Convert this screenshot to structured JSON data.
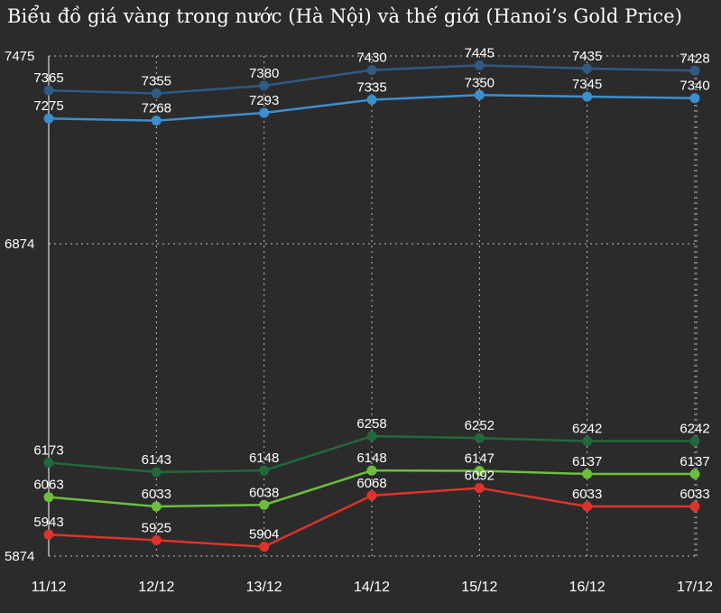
{
  "title": "Biểu đồ giá vàng trong nước (Hà Nội) và thế giới (Hanoi’s Gold Price)",
  "chart_data": {
    "type": "line",
    "title": "Biểu đồ giá vàng trong nước (Hà Nội) và thế giới (Hanoi’s Gold Price)",
    "xlabel": "",
    "ylabel": "",
    "categories": [
      "11/12",
      "12/12",
      "13/12",
      "14/12",
      "15/12",
      "16/12",
      "17/12"
    ],
    "ylim": [
      5874,
      7475
    ],
    "yticks": [
      "7475",
      "6874",
      "5874"
    ],
    "grid": true,
    "legend": "none",
    "series": [
      {
        "color": "#2e5a86",
        "values": [
          7365,
          7355,
          7380,
          7430,
          7445,
          7435,
          7428
        ]
      },
      {
        "color": "#3a8fd0",
        "values": [
          7275,
          7268,
          7293,
          7335,
          7350,
          7345,
          7340
        ]
      },
      {
        "color": "#1f6a3a",
        "values": [
          6173,
          6143,
          6148,
          6258,
          6252,
          6242,
          6242
        ]
      },
      {
        "color": "#6abf3c",
        "values": [
          6063,
          6033,
          6038,
          6148,
          6147,
          6137,
          6137
        ]
      },
      {
        "color": "#e03228",
        "values": [
          5943,
          5925,
          5904,
          6068,
          6092,
          6033,
          6033
        ]
      }
    ]
  }
}
